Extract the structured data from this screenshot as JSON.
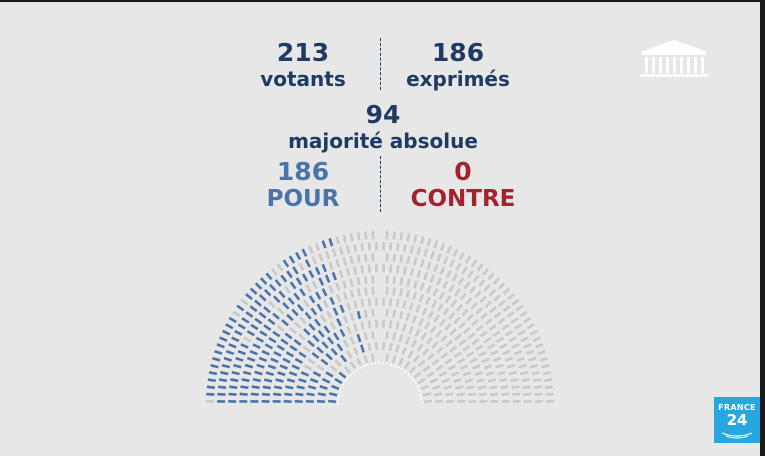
{
  "vote": {
    "votants": {
      "value": "213",
      "label": "votants"
    },
    "exprimes": {
      "value": "186",
      "label": "exprimés"
    },
    "majorite": {
      "value": "94",
      "label": "majorité absolue"
    },
    "pour": {
      "value": "186",
      "label": "POUR"
    },
    "contre": {
      "value": "0",
      "label": "CONTRE"
    }
  },
  "hemicycle": {
    "total_seats": 577,
    "rows": 12,
    "seats_pour": 186,
    "seats_contre": 0,
    "colors": {
      "pour": "#4a73aa",
      "contre": "#a3222e",
      "empty": "#c9c9c9",
      "highlight": "#ffffff"
    }
  },
  "logos": {
    "assembly": "assemblee-nationale-icon",
    "channel": {
      "name": "FRANCE",
      "number": "24"
    }
  },
  "colors": {
    "background": "#e7e7e7",
    "navy": "#1f3a63",
    "blue": "#4a73aa",
    "red": "#a3222e",
    "france24": "#27a7df"
  }
}
